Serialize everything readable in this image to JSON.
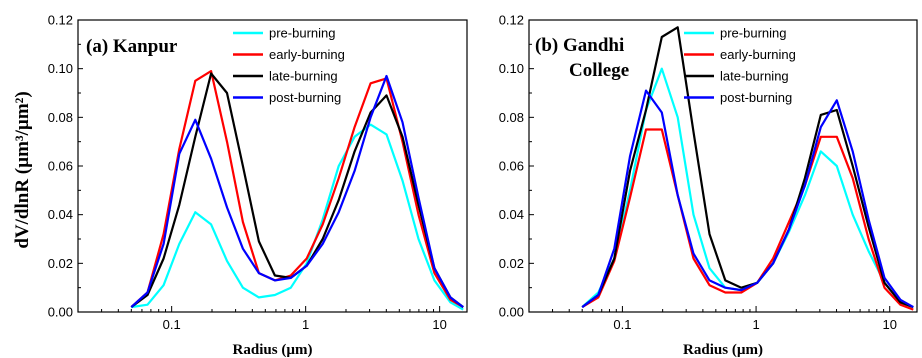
{
  "figure": {
    "ylabel": "dV/dlnR (µm³/µm²)"
  },
  "chart_data": [
    {
      "type": "line",
      "panel_label": "(a) Kanpur",
      "xlabel": "Radius (µm)",
      "ylabel": "dV/dlnR (µm³/µm²)",
      "xscale": "log",
      "xlim": [
        0.02,
        16
      ],
      "ylim": [
        0,
        0.12
      ],
      "xticks": [
        0.1,
        1,
        10
      ],
      "xtick_labels": [
        "0.1",
        "1",
        "10"
      ],
      "yticks": [
        0.0,
        0.02,
        0.04,
        0.06,
        0.08,
        0.1,
        0.12
      ],
      "ytick_labels": [
        "0.00",
        "0.02",
        "0.04",
        "0.06",
        "0.08",
        "0.10",
        "0.12"
      ],
      "legend_position": "top-right",
      "x": [
        0.05,
        0.066,
        0.087,
        0.114,
        0.15,
        0.197,
        0.259,
        0.34,
        0.448,
        0.589,
        0.775,
        1.019,
        1.341,
        1.764,
        2.32,
        3.052,
        4.015,
        5.282,
        6.948,
        9.14,
        12.024,
        15.0
      ],
      "series": [
        {
          "name": "pre-burning",
          "color": "#00ffff",
          "values": [
            0.002,
            0.003,
            0.011,
            0.028,
            0.041,
            0.036,
            0.021,
            0.01,
            0.006,
            0.007,
            0.01,
            0.02,
            0.038,
            0.06,
            0.072,
            0.077,
            0.073,
            0.054,
            0.03,
            0.013,
            0.004,
            0.001
          ]
        },
        {
          "name": "early-burning",
          "color": "#ff0000",
          "values": [
            0.002,
            0.008,
            0.032,
            0.067,
            0.095,
            0.099,
            0.07,
            0.037,
            0.016,
            0.013,
            0.015,
            0.022,
            0.036,
            0.055,
            0.076,
            0.094,
            0.096,
            0.07,
            0.04,
            0.016,
            0.005,
            0.002
          ]
        },
        {
          "name": "late-burning",
          "color": "#000000",
          "values": [
            0.002,
            0.007,
            0.022,
            0.044,
            0.072,
            0.098,
            0.09,
            0.06,
            0.029,
            0.015,
            0.014,
            0.019,
            0.03,
            0.046,
            0.066,
            0.082,
            0.089,
            0.072,
            0.044,
            0.018,
            0.006,
            0.002
          ]
        },
        {
          "name": "post-burning",
          "color": "#0000ff",
          "values": [
            0.002,
            0.008,
            0.028,
            0.065,
            0.079,
            0.063,
            0.043,
            0.026,
            0.016,
            0.013,
            0.014,
            0.019,
            0.028,
            0.041,
            0.058,
            0.08,
            0.097,
            0.078,
            0.047,
            0.018,
            0.006,
            0.002
          ]
        }
      ]
    },
    {
      "type": "line",
      "panel_label_lines": [
        "(b) Gandhi",
        "College"
      ],
      "xlabel": "Radius (µm)",
      "ylabel": "",
      "xscale": "log",
      "xlim": [
        0.02,
        16
      ],
      "ylim": [
        0,
        0.12
      ],
      "xticks": [
        0.1,
        1,
        10
      ],
      "xtick_labels": [
        "0.1",
        "1",
        "10"
      ],
      "yticks": [
        0.0,
        0.02,
        0.04,
        0.06,
        0.08,
        0.1,
        0.12
      ],
      "ytick_labels": [
        "0.00",
        "0.02",
        "0.04",
        "0.06",
        "0.08",
        "0.10",
        "0.12"
      ],
      "legend_position": "top-right",
      "x": [
        0.05,
        0.066,
        0.087,
        0.114,
        0.15,
        0.197,
        0.259,
        0.34,
        0.448,
        0.589,
        0.775,
        1.019,
        1.341,
        1.764,
        2.32,
        3.052,
        4.015,
        5.282,
        6.948,
        9.14,
        12.024,
        15.0
      ],
      "series": [
        {
          "name": "pre-burning",
          "color": "#00ffff",
          "values": [
            0.002,
            0.008,
            0.022,
            0.05,
            0.083,
            0.1,
            0.08,
            0.04,
            0.018,
            0.01,
            0.009,
            0.012,
            0.02,
            0.033,
            0.048,
            0.066,
            0.06,
            0.04,
            0.025,
            0.012,
            0.004,
            0.002
          ]
        },
        {
          "name": "early-burning",
          "color": "#ff0000",
          "values": [
            0.002,
            0.006,
            0.021,
            0.047,
            0.075,
            0.075,
            0.048,
            0.022,
            0.011,
            0.008,
            0.008,
            0.012,
            0.022,
            0.037,
            0.052,
            0.072,
            0.072,
            0.055,
            0.03,
            0.01,
            0.003,
            0.001
          ]
        },
        {
          "name": "late-burning",
          "color": "#000000",
          "values": [
            0.002,
            0.007,
            0.022,
            0.058,
            0.083,
            0.113,
            0.117,
            0.074,
            0.032,
            0.013,
            0.01,
            0.012,
            0.02,
            0.034,
            0.055,
            0.081,
            0.083,
            0.06,
            0.035,
            0.012,
            0.004,
            0.002
          ]
        },
        {
          "name": "post-burning",
          "color": "#0000ff",
          "values": [
            0.002,
            0.007,
            0.026,
            0.064,
            0.091,
            0.082,
            0.048,
            0.024,
            0.013,
            0.01,
            0.009,
            0.012,
            0.02,
            0.034,
            0.052,
            0.076,
            0.087,
            0.066,
            0.038,
            0.014,
            0.005,
            0.002
          ]
        }
      ]
    }
  ]
}
